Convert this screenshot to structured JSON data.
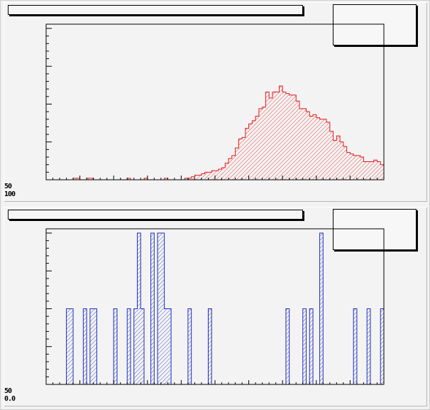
{
  "pads": [
    {
      "id": "top",
      "title": "",
      "stats": "",
      "axis_labels": [
        "50",
        "100"
      ],
      "colors": {
        "line": "#e41a1c",
        "hatch": "#e41a1c"
      }
    },
    {
      "id": "bottom",
      "title": "",
      "stats": "",
      "axis_labels": [
        "50",
        "0.0"
      ],
      "colors": {
        "line": "#1f2fbf",
        "hatch": "#1f2fbf"
      }
    }
  ],
  "chart_data": [
    {
      "type": "bar",
      "title": "",
      "xlabel": "",
      "ylabel": "",
      "grid": false,
      "legend": "top-right",
      "nbins": 100,
      "ylim": [
        0,
        100
      ],
      "values": [
        0,
        0,
        0,
        0,
        0,
        0,
        0,
        0,
        1,
        1,
        0,
        0,
        1,
        1,
        0,
        0,
        0,
        0,
        0,
        0,
        0,
        0,
        0,
        0,
        1,
        0,
        0,
        0,
        0,
        1,
        0,
        0,
        0,
        0,
        0,
        1,
        0,
        0,
        0,
        0,
        0,
        1,
        1,
        2,
        3,
        3,
        4,
        5,
        5,
        6,
        6,
        7,
        8,
        11,
        14,
        16,
        21,
        27,
        28,
        34,
        37,
        39,
        42,
        47,
        48,
        58,
        54,
        58,
        58,
        62,
        58,
        57,
        56,
        56,
        52,
        47,
        47,
        45,
        42,
        43,
        41,
        40,
        40,
        38,
        32,
        26,
        29,
        25,
        22,
        18,
        17,
        16,
        16,
        15,
        12,
        12,
        12,
        13,
        12,
        10
      ]
    },
    {
      "type": "bar",
      "title": "",
      "xlabel": "",
      "ylabel": "",
      "grid": false,
      "legend": "top-right",
      "nbins": 100,
      "ylim": [
        0,
        2
      ],
      "values": [
        0,
        0,
        0,
        0,
        0,
        0,
        1,
        1,
        0,
        0,
        0,
        1,
        0,
        1,
        1,
        0,
        0,
        0,
        0,
        0,
        1,
        0,
        0,
        0,
        1,
        0,
        1,
        2,
        1,
        0,
        0,
        2,
        0,
        2,
        2,
        1,
        1,
        0,
        0,
        0,
        0,
        0,
        1,
        0,
        0,
        0,
        0,
        0,
        1,
        0,
        0,
        0,
        0,
        0,
        0,
        0,
        0,
        0,
        0,
        0,
        0,
        0,
        0,
        0,
        0,
        0,
        0,
        0,
        0,
        0,
        0,
        1,
        0,
        0,
        0,
        0,
        1,
        0,
        1,
        0,
        0,
        2,
        0,
        0,
        0,
        0,
        0,
        0,
        0,
        0,
        0,
        1,
        0,
        0,
        0,
        1,
        0,
        0,
        0,
        1
      ]
    }
  ]
}
